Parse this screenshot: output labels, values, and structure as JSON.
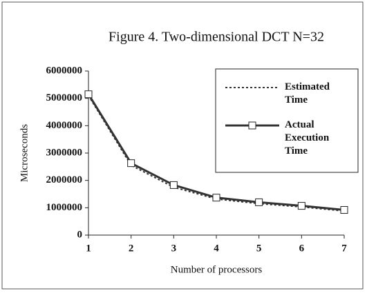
{
  "chart_data": {
    "type": "line",
    "title": "Figure 4. Two-dimensional DCT N=32",
    "x_label": "Number of processors",
    "y_label": "Microseconds",
    "x": [
      1,
      2,
      3,
      4,
      5,
      6,
      7
    ],
    "series": [
      {
        "name": "Estimated Time",
        "color": "#333333",
        "values": [
          5100000,
          2550000,
          1750000,
          1320000,
          1150000,
          1030000,
          880000
        ]
      },
      {
        "name": "Actual Execution Time",
        "color": "#333333",
        "values": [
          5150000,
          2630000,
          1830000,
          1370000,
          1200000,
          1070000,
          920000
        ]
      }
    ],
    "xlim": [
      1,
      7
    ],
    "xticks": [
      1,
      2,
      3,
      4,
      5,
      6,
      7
    ],
    "ylim": [
      0,
      6000000
    ],
    "yticks": [
      0,
      1000000,
      2000000,
      3000000,
      4000000,
      5000000,
      6000000
    ],
    "legend": "upper right"
  }
}
